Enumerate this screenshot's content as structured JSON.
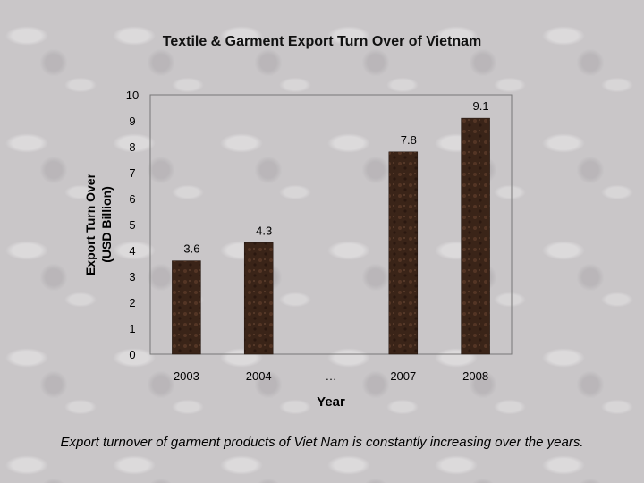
{
  "chart_data": {
    "type": "bar",
    "title": "Textile & Garment Export Turn Over of Vietnam",
    "categories": [
      "2003",
      "2004",
      "…",
      "2007",
      "2008"
    ],
    "values": [
      3.6,
      4.3,
      null,
      7.8,
      9.1
    ],
    "data_labels": [
      "3.6",
      "4.3",
      "",
      "7.8",
      "9.1"
    ],
    "xlabel": "Year",
    "ylabel_line1": "Export Turn Over",
    "ylabel_line2": "(USD Billion)",
    "ylim": [
      0,
      10
    ],
    "yticks": [
      "0",
      "1",
      "2",
      "3",
      "4",
      "5",
      "6",
      "7",
      "8",
      "9",
      "10"
    ],
    "grid": false,
    "bar_color": "#3a2418"
  },
  "caption": "Export turnover of garment products of Viet Nam is constantly increasing over the years."
}
